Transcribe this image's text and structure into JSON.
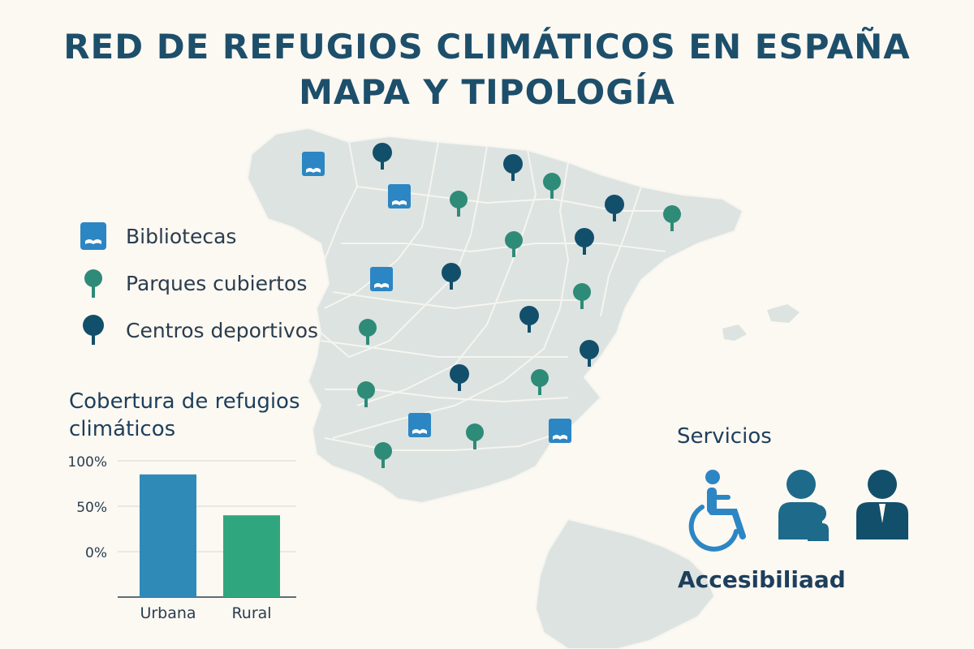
{
  "title": {
    "line1": "RED DE REFUGIOS CLIMÁTICOS EN ESPAÑA",
    "line2": "MAPA Y TIPOLOGÍA"
  },
  "colors": {
    "background": "#fcf8f2",
    "map_fill": "#dde3e0",
    "library": "#2c86c4",
    "park": "#2e8b78",
    "sports": "#124f6b",
    "bar_urban": "#2f8ab8",
    "bar_rural": "#30a67e",
    "title": "#1d4f6b"
  },
  "legend": [
    {
      "type": "library",
      "icon": "library-icon",
      "label": "Bibliotecas"
    },
    {
      "type": "park",
      "icon": "tree-icon",
      "label": "Parques cubiertos"
    },
    {
      "type": "sports",
      "icon": "tree-icon",
      "label": "Centros deportivos"
    }
  ],
  "map": {
    "markers_note": "",
    "markers": [
      {
        "type": "library"
      },
      {
        "type": "sports"
      },
      {
        "type": "library"
      },
      {
        "type": "sports"
      },
      {
        "type": "park"
      },
      {
        "type": "park"
      },
      {
        "type": "sports"
      },
      {
        "type": "park"
      },
      {
        "type": "park"
      },
      {
        "type": "sports"
      },
      {
        "type": "sports"
      },
      {
        "type": "library"
      },
      {
        "type": "park"
      },
      {
        "type": "sports"
      },
      {
        "type": "park"
      },
      {
        "type": "sports"
      },
      {
        "type": "park"
      },
      {
        "type": "sports"
      },
      {
        "type": "park"
      },
      {
        "type": "library"
      },
      {
        "type": "park"
      },
      {
        "type": "library"
      },
      {
        "type": "park"
      }
    ]
  },
  "chart_data": {
    "type": "bar",
    "title": "Cobertura de refugios climáticos",
    "categories": [
      "Urbana",
      "Rural"
    ],
    "values": [
      85,
      40
    ],
    "ylim": [
      0,
      100
    ],
    "yticks": [
      {
        "label": "100%",
        "value": 100
      },
      {
        "label": "50%",
        "value": 50
      },
      {
        "label": "0%",
        "value": 0
      }
    ],
    "grid": true,
    "xlabel": "",
    "ylabel": ""
  },
  "services": {
    "title": "Servicios",
    "icons": [
      "wheelchair-icon",
      "family-icon",
      "person-icon"
    ],
    "footer": "Accesibiliaad"
  }
}
